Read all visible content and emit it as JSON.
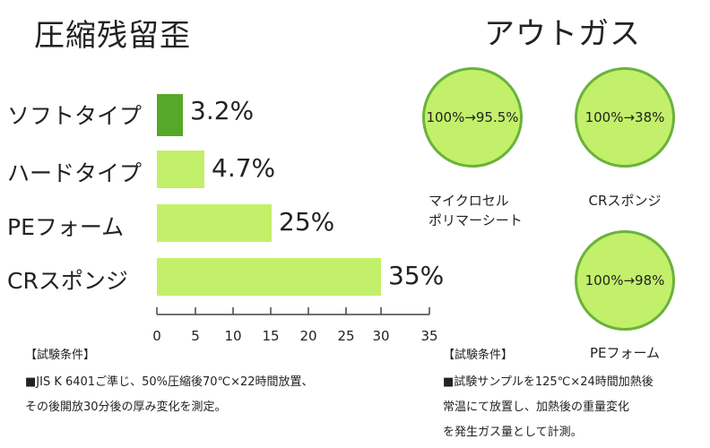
{
  "chart_data": [
    {
      "type": "bar",
      "orientation": "horizontal",
      "title": "圧縮残留歪",
      "categories": [
        "ソフトタイプ",
        "ハードタイプ",
        "PEフォーム",
        "CRスポンジ"
      ],
      "values": [
        3.2,
        4.7,
        25,
        35
      ],
      "value_labels": [
        "3.2%",
        "4.7%",
        "25%",
        "35%"
      ],
      "xticks": [
        "0",
        "5",
        "10",
        "15",
        "20",
        "25",
        "30",
        "35"
      ],
      "xlim": [
        0,
        35
      ],
      "grid": false,
      "colors": [
        "#56a82a",
        "#c3f06a",
        "#c3f06a",
        "#c3f06a"
      ]
    },
    {
      "type": "bubble",
      "title": "アウトガス",
      "items": [
        {
          "label_lines": [
            "マイクロセル",
            "ポリマーシート"
          ],
          "value": "100%→95.5%"
        },
        {
          "label_lines": [
            "CRスポンジ"
          ],
          "value": "100%→38%"
        },
        {
          "label_lines": [
            "PEフォーム"
          ],
          "value": "100%→98%"
        }
      ],
      "colors": {
        "fill": "#c3f06a",
        "border": "#6ab23c"
      }
    }
  ],
  "notes": {
    "left": {
      "heading": "【試験条件】",
      "lines": [
        "■JIS K 6401ご準じ、50%圧縮後70℃×22時間放置、",
        "その後開放30分後の厚み変化を測定。"
      ]
    },
    "right": {
      "heading": "【試験条件】",
      "lines": [
        "■試験サンプルを125℃×24時間加熱後",
        "常温にて放置し、加熱後の重量変化",
        "を発生ガス量として計測。"
      ]
    }
  }
}
